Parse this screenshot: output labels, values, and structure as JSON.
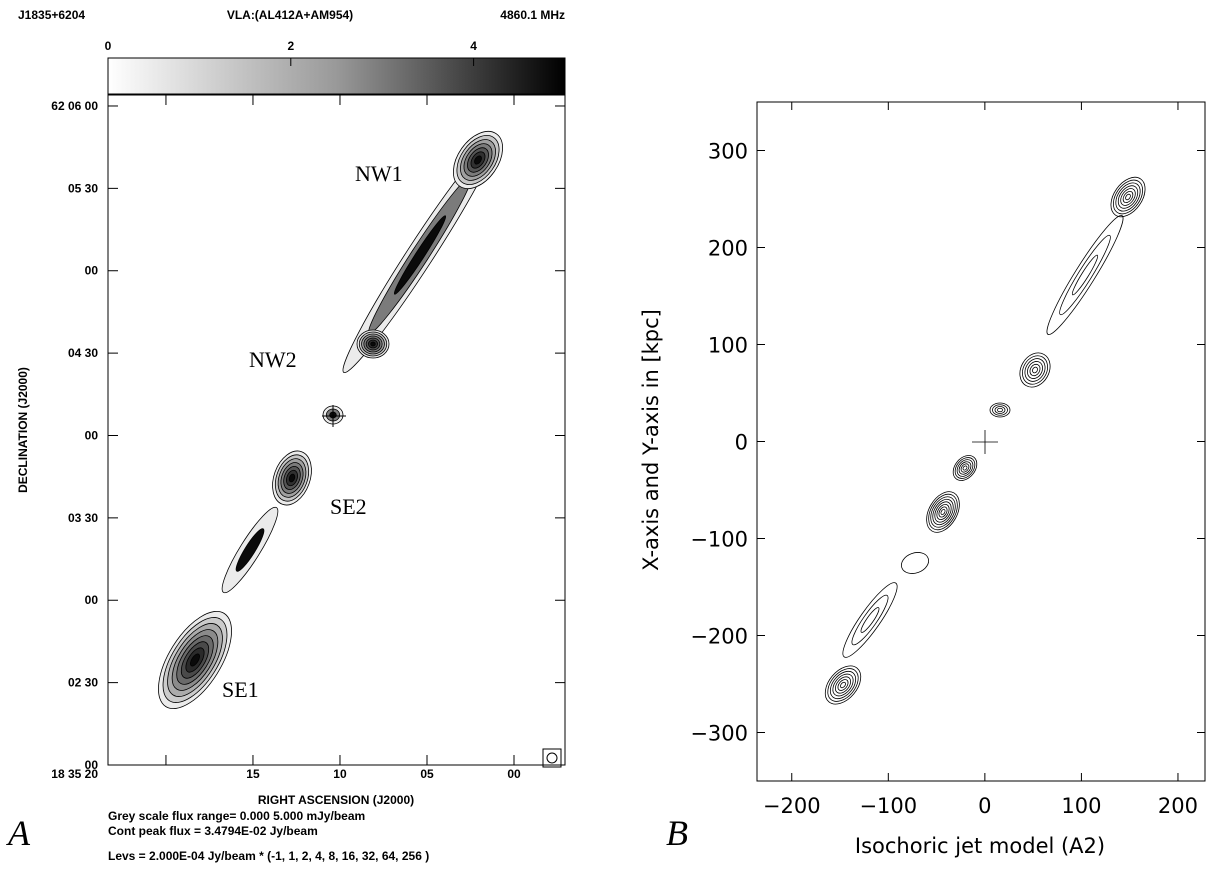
{
  "chart_data": [
    {
      "type": "map",
      "panel_label": "A",
      "header": [
        "J1835+6204",
        "VLA:(AL412A+AM954)",
        "4860.1 MHz"
      ],
      "colorbar": {
        "lim": [
          0,
          5
        ],
        "ticks": [
          0,
          2,
          4
        ]
      },
      "xlabel": "RIGHT ASCENSION (J2000)",
      "ylabel": "DECLINATION (J2000)",
      "xlim": [
        23.33,
        -2.93
      ],
      "xticks": [
        {
          "value": 20,
          "label": "18 35 20"
        },
        {
          "value": 15,
          "label": "15"
        },
        {
          "value": 10,
          "label": "10"
        },
        {
          "value": 5,
          "label": "05"
        },
        {
          "value": 0,
          "label": "00"
        }
      ],
      "ylim": [
        120,
        364
      ],
      "yticks": [
        {
          "value": 360,
          "label": "62 06 00"
        },
        {
          "value": 330,
          "label": "05 30"
        },
        {
          "value": 300,
          "label": "00"
        },
        {
          "value": 270,
          "label": "04 30"
        },
        {
          "value": 240,
          "label": "00"
        },
        {
          "value": 210,
          "label": "03 30"
        },
        {
          "value": 180,
          "label": "00"
        },
        {
          "value": 150,
          "label": "02 30"
        },
        {
          "value": 120,
          "label": "00"
        }
      ],
      "annotations": [
        "NW1",
        "NW2",
        "SE2",
        "SE1"
      ],
      "notes": [
        "Grey scale flux range= 0.000 5.000 mJy/beam",
        "Cont peak flux =  3.4794E-02 Jy/beam",
        "Levs = 2.000E-04 Jy/beam * (-1, 1, 2, 4, 8, 16, 32, 64, 256 )"
      ]
    },
    {
      "type": "contour",
      "panel_label": "B",
      "xlabel": "Isochoric jet model (A2)",
      "ylabel": "X-axis and Y-axis in [kpc]",
      "xlim": [
        -236,
        228
      ],
      "xticks": [
        {
          "value": -200,
          "label": "−200"
        },
        {
          "value": -100,
          "label": "−100"
        },
        0,
        100,
        200
      ],
      "ylim": [
        -350,
        350
      ],
      "yticks": [
        {
          "value": -300,
          "label": "−300"
        },
        {
          "value": -200,
          "label": "−200"
        },
        {
          "value": -100,
          "label": "−100"
        },
        0,
        100,
        200,
        300
      ]
    }
  ]
}
